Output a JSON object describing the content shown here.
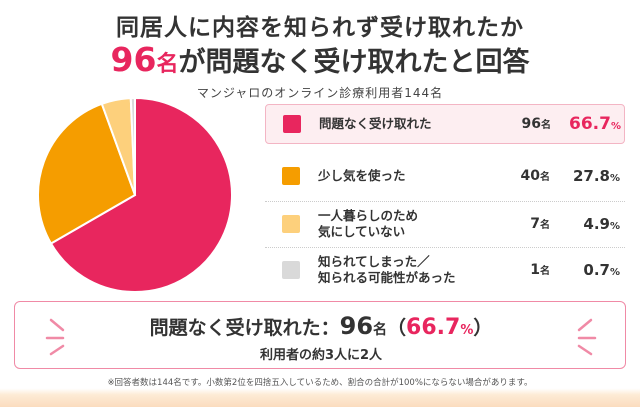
{
  "header": {
    "title_line1": "同居人に内容を知られず受け取れたか",
    "title_line2_num": "96",
    "title_line2_unit": "名",
    "title_line2_rest": "が問題なく受け取れたと回答",
    "subtitle": "マンジャロのオンライン診療利用者144名"
  },
  "colors": {
    "accent": "#e8265e",
    "orange": "#f59d00",
    "light_orange": "#fdd07c",
    "gray": "#d9d9d9"
  },
  "chart_data": {
    "type": "pie",
    "title": "同居人に内容を知られず受け取れたか",
    "total": 144,
    "slices": [
      {
        "label": "問題なく受け取れた",
        "count": 96,
        "count_unit": "名",
        "percent": 66.7,
        "percent_unit": "%",
        "color": "#e8265e"
      },
      {
        "label": "少し気を使った",
        "count": 40,
        "count_unit": "名",
        "percent": 27.8,
        "percent_unit": "%",
        "color": "#f59d00"
      },
      {
        "label": "一人暮らしのため\n気にしていない",
        "count": 7,
        "count_unit": "名",
        "percent": 4.9,
        "percent_unit": "%",
        "color": "#fdd07c"
      },
      {
        "label": "知られてしまった／\n知られる可能性があった",
        "count": 1,
        "count_unit": "名",
        "percent": 0.7,
        "percent_unit": "%",
        "color": "#d9d9d9"
      }
    ]
  },
  "summary": {
    "label": "問題なく受け取れた：",
    "count": "96",
    "count_unit": "名",
    "open_paren": "（",
    "percent": "66.7",
    "percent_unit": "%",
    "close_paren": "）",
    "sub": "利用者の約3人に2人"
  },
  "footnote": "※回答者数は144名です。小数第2位を四捨五入しているため、割合の合計が100%にならない場合があります。"
}
